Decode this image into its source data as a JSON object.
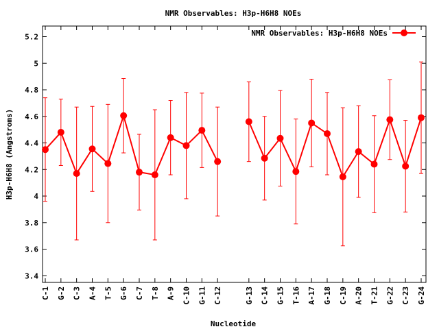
{
  "chart_data": {
    "type": "line",
    "title": "NMR Observables: H3p-H6H8 NOEs",
    "xlabel": "Nucleotide",
    "ylabel": "H3p-H6H8 (Angstroms)",
    "ylim": [
      3.35,
      5.28
    ],
    "yticks": [
      3.4,
      3.6,
      3.8,
      4,
      4.2,
      4.4,
      4.6,
      4.8,
      5,
      5.2
    ],
    "ytick_labels": [
      "3.4",
      "3.6",
      "3.8",
      "4",
      "4.2",
      "4.4",
      "4.6",
      "4.8",
      "5",
      "5.2"
    ],
    "grid": false,
    "legend_position": "top-right",
    "color": "#ff0000",
    "series": [
      {
        "name": "NMR Observables: H3p-H6H8 NOEs",
        "segments": [
          {
            "x": [
              "C-1",
              "G-2",
              "C-3",
              "A-4",
              "T-5",
              "G-6",
              "C-7",
              "T-8",
              "A-9",
              "C-10",
              "G-11",
              "C-12"
            ],
            "y": [
              4.35,
              4.48,
              4.17,
              4.355,
              4.245,
              4.605,
              4.18,
              4.16,
              4.44,
              4.38,
              4.495,
              4.26
            ],
            "err": [
              0.39,
              0.25,
              0.5,
              0.32,
              0.445,
              0.28,
              0.285,
              0.49,
              0.28,
              0.4,
              0.28,
              0.41
            ]
          },
          {
            "x": [
              "G-13",
              "C-14",
              "G-15",
              "T-16",
              "A-17",
              "G-18",
              "C-19",
              "A-20",
              "T-21",
              "G-22",
              "C-23",
              "G-24"
            ],
            "y": [
              4.56,
              4.285,
              4.435,
              4.185,
              4.55,
              4.47,
              4.145,
              4.335,
              4.24,
              4.575,
              4.225,
              4.59
            ],
            "err": [
              0.3,
              0.315,
              0.36,
              0.395,
              0.33,
              0.31,
              0.52,
              0.345,
              0.365,
              0.3,
              0.345,
              0.42
            ]
          }
        ]
      }
    ]
  }
}
